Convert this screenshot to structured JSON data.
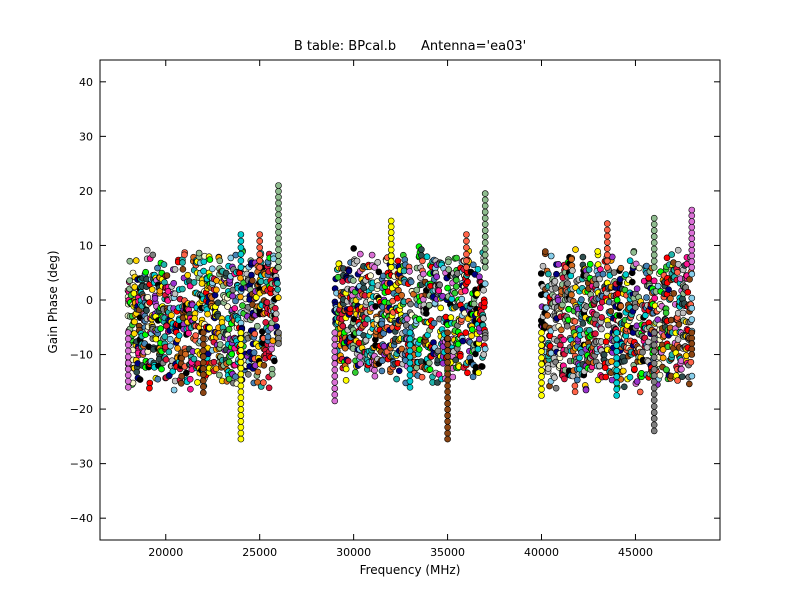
{
  "chart_data": {
    "type": "scatter",
    "title": "B table: BPcal.b      Antenna='ea03'",
    "xlabel": "Frequency (MHz)",
    "ylabel": "Gain Phase (deg)",
    "xlim": [
      16500,
      49500
    ],
    "ylim": [
      -44,
      44
    ],
    "xticks": [
      20000,
      25000,
      30000,
      35000,
      40000,
      45000
    ],
    "xtick_labels": [
      "20000",
      "25000",
      "30000",
      "35000",
      "40000",
      "45000"
    ],
    "yticks": [
      -40,
      -30,
      -20,
      -10,
      0,
      10,
      20,
      30,
      40
    ],
    "ytick_labels": [
      "−40",
      "−30",
      "−20",
      "−10",
      "0",
      "10",
      "20",
      "30",
      "40"
    ],
    "grid": false,
    "legend": "none",
    "marker": "circle",
    "colors": [
      "#c0c0c0",
      "#4682b4",
      "#000080",
      "#8fbc8f",
      "#00ced1",
      "#ff1493",
      "#ffa500",
      "#ffd700",
      "#808080",
      "#ff6347",
      "#32cd32",
      "#d2691e",
      "#87ceeb",
      "#da70d6",
      "#000000",
      "#fafad2",
      "#00ff00",
      "#9932cc",
      "#8b4513",
      "#2f4f4f",
      "#ff0000",
      "#20b2aa",
      "#dc143c",
      "#ffff00"
    ],
    "bands": [
      {
        "x_start": 18000,
        "x_end": 26000,
        "phase_min": -17,
        "phase_max": 10,
        "extremes": [
          [
            26000,
            21
          ],
          [
            26000,
            -8
          ],
          [
            18000,
            -16
          ],
          [
            22000,
            -17
          ],
          [
            24000,
            -25.5
          ],
          [
            24000,
            12
          ],
          [
            25000,
            12
          ]
        ]
      },
      {
        "x_start": 29000,
        "x_end": 37000,
        "phase_min": -16,
        "phase_max": 10,
        "extremes": [
          [
            37000,
            19.5
          ],
          [
            37000,
            -7
          ],
          [
            29000,
            -18.5
          ],
          [
            35000,
            -25.5
          ],
          [
            32000,
            14.5
          ],
          [
            33000,
            -16
          ],
          [
            36000,
            12
          ]
        ]
      },
      {
        "x_start": 40000,
        "x_end": 48000,
        "phase_min": -17,
        "phase_max": 10,
        "extremes": [
          [
            46000,
            15
          ],
          [
            46000,
            -24
          ],
          [
            48000,
            16.5
          ],
          [
            48000,
            -10
          ],
          [
            40000,
            -17.5
          ],
          [
            44000,
            -17.5
          ],
          [
            43500,
            14
          ]
        ]
      }
    ]
  }
}
